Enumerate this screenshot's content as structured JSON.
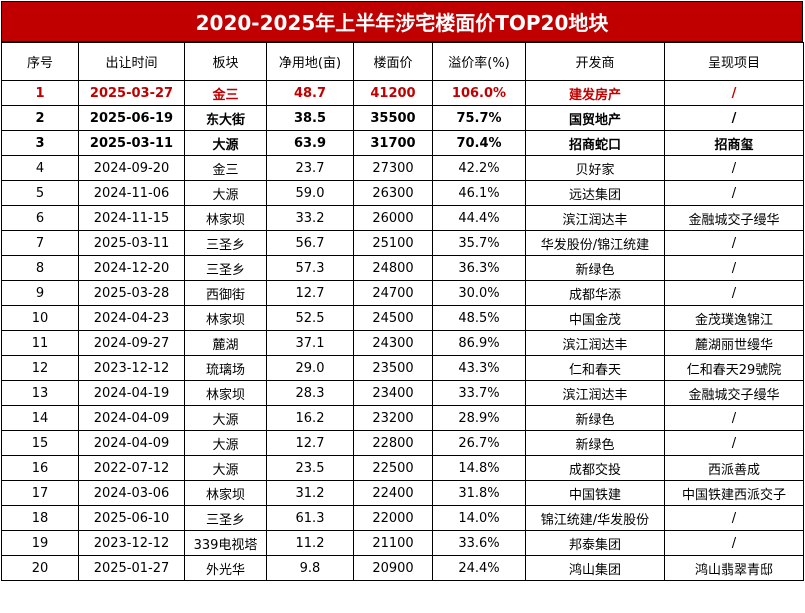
{
  "title": "2020-2025年上半年涉宅楼面价TOP20地块",
  "columns": [
    "序号",
    "出让时间",
    "板块",
    "净用地(亩)",
    "楼面价",
    "溢价率(%)",
    "开发商",
    "呈现项目"
  ],
  "rows": [
    [
      "1",
      "2025-03-27",
      "金三",
      "48.7",
      "41200",
      "106.0%",
      "建发房产",
      "/"
    ],
    [
      "2",
      "2025-06-19",
      "东大街",
      "38.5",
      "35500",
      "75.7%",
      "国贸地产",
      "/"
    ],
    [
      "3",
      "2025-03-11",
      "大源",
      "63.9",
      "31700",
      "70.4%",
      "招商蛇口",
      "招商玺"
    ],
    [
      "4",
      "2024-09-20",
      "金三",
      "23.7",
      "27300",
      "42.2%",
      "贝好家",
      "/"
    ],
    [
      "5",
      "2024-11-06",
      "大源",
      "59.0",
      "26300",
      "46.1%",
      "远达集团",
      "/"
    ],
    [
      "6",
      "2024-11-15",
      "林家坝",
      "33.2",
      "26000",
      "44.4%",
      "滨江润达丰",
      "金融城交子缦华"
    ],
    [
      "7",
      "2025-03-11",
      "三圣乡",
      "56.7",
      "25100",
      "35.7%",
      "华发股份/锦江统建",
      "/"
    ],
    [
      "8",
      "2024-12-20",
      "三圣乡",
      "57.3",
      "24800",
      "36.3%",
      "新绿色",
      "/"
    ],
    [
      "9",
      "2025-03-28",
      "西御街",
      "12.7",
      "24700",
      "30.0%",
      "成都华添",
      "/"
    ],
    [
      "10",
      "2024-04-23",
      "林家坝",
      "52.5",
      "24500",
      "48.5%",
      "中国金茂",
      "金茂璞逸锦江"
    ],
    [
      "11",
      "2024-09-27",
      "麓湖",
      "37.1",
      "24300",
      "86.9%",
      "滨江润达丰",
      "麓湖丽世缦华"
    ],
    [
      "12",
      "2023-12-12",
      "琉璃场",
      "29.0",
      "23500",
      "43.3%",
      "仁和春天",
      "仁和春天29號院"
    ],
    [
      "13",
      "2024-04-19",
      "林家坝",
      "28.3",
      "23400",
      "33.7%",
      "滨江润达丰",
      "金融城交子缦华"
    ],
    [
      "14",
      "2024-04-09",
      "大源",
      "16.2",
      "23200",
      "28.9%",
      "新绿色",
      "/"
    ],
    [
      "15",
      "2024-04-09",
      "大源",
      "12.7",
      "22800",
      "26.7%",
      "新绿色",
      "/"
    ],
    [
      "16",
      "2022-07-12",
      "大源",
      "23.5",
      "22500",
      "14.8%",
      "成都交投",
      "西派善成"
    ],
    [
      "17",
      "2024-03-06",
      "林家坝",
      "31.2",
      "22400",
      "31.8%",
      "中国铁建",
      "中国铁建西派交子"
    ],
    [
      "18",
      "2025-06-10",
      "三圣乡",
      "61.3",
      "22000",
      "14.0%",
      "锦江统建/华发股份",
      "/"
    ],
    [
      "19",
      "2023-12-12",
      "339电视塔",
      "11.2",
      "21100",
      "33.6%",
      "邦泰集团",
      "/"
    ],
    [
      "20",
      "2025-01-27",
      "外光华",
      "9.8",
      "20900",
      "24.4%",
      "鸿山集团",
      "鸿山翡翠青邸"
    ]
  ],
  "colors": {
    "title_bg": "#c00000",
    "title_text": "#ffffff",
    "highlight_text": "#c00000"
  }
}
